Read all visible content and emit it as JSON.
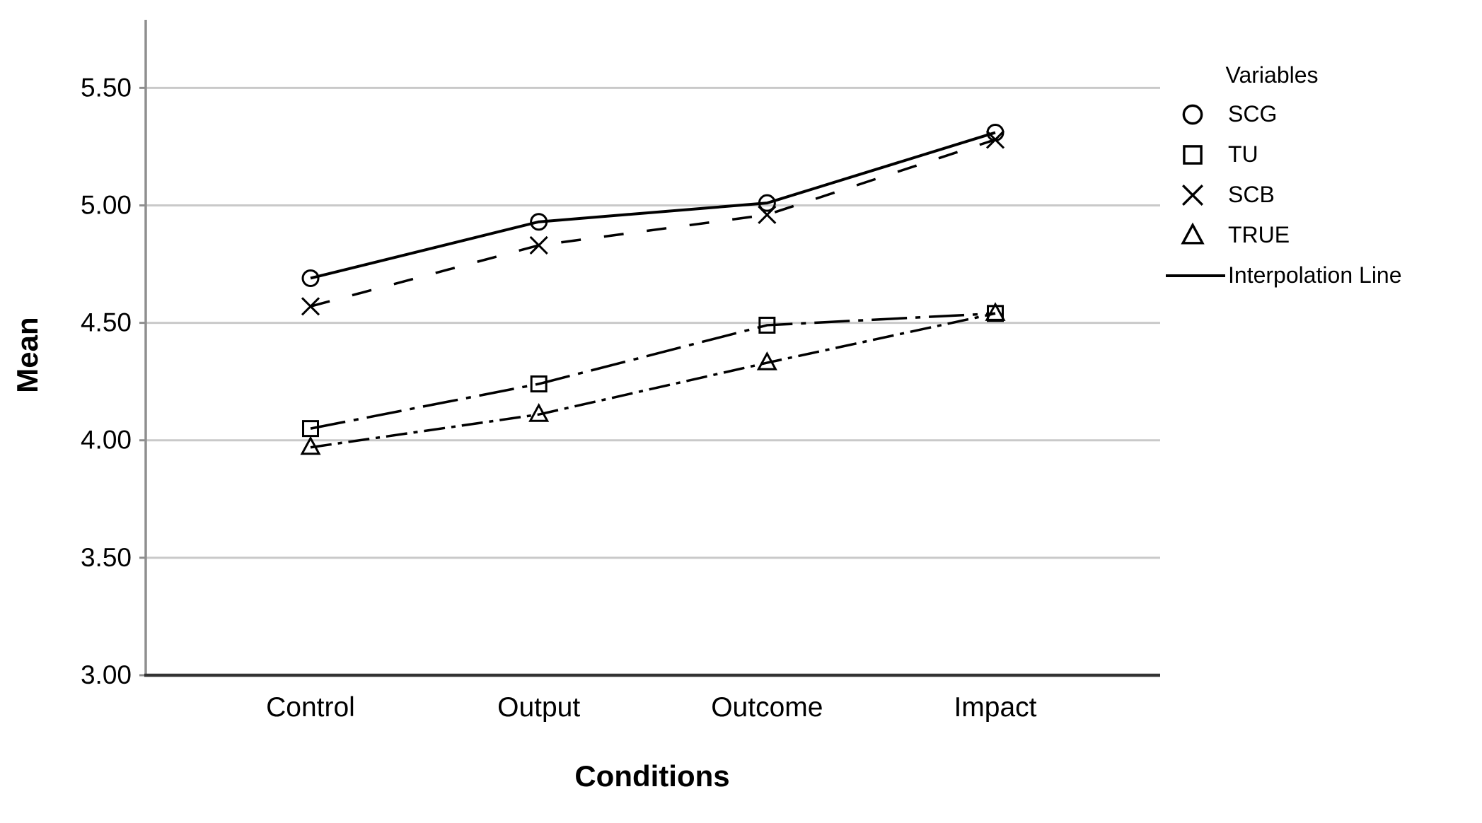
{
  "chart_data": {
    "type": "line",
    "title": "",
    "xlabel": "Conditions",
    "ylabel": "Mean",
    "categories": [
      "Control",
      "Output",
      "Outcome",
      "Impact"
    ],
    "series": [
      {
        "name": "SCG",
        "marker": "circle",
        "marker_icon": "circle-marker-icon",
        "line_style": "solid",
        "values": [
          4.69,
          4.93,
          5.01,
          5.31
        ]
      },
      {
        "name": "TU",
        "marker": "square",
        "marker_icon": "square-marker-icon",
        "line_style": "dash-dot",
        "values": [
          4.05,
          4.24,
          4.49,
          4.54
        ]
      },
      {
        "name": "SCB",
        "marker": "x",
        "marker_icon": "x-marker-icon",
        "line_style": "dashed",
        "values": [
          4.57,
          4.83,
          4.96,
          5.28
        ]
      },
      {
        "name": "TRUE",
        "marker": "triangle",
        "marker_icon": "triangle-marker-icon",
        "line_style": "dash-dot-short",
        "values": [
          3.97,
          4.11,
          4.33,
          4.54
        ]
      }
    ],
    "ylim": [
      3.0,
      5.79
    ],
    "yticks": [
      "3.00",
      "3.50",
      "4.00",
      "4.50",
      "5.00",
      "5.50"
    ],
    "grid": "horizontal",
    "legend": {
      "title": "Variables",
      "position": "right",
      "extra_items": [
        {
          "label": "Interpolation Line",
          "sample": "line",
          "icon": "line-sample-icon"
        }
      ]
    },
    "colors": {
      "series_stroke": "#000000",
      "gridline": "#c9c9c9",
      "y_axis": "#8f8f8f",
      "x_axis": "#333333",
      "text": "#000000"
    }
  }
}
